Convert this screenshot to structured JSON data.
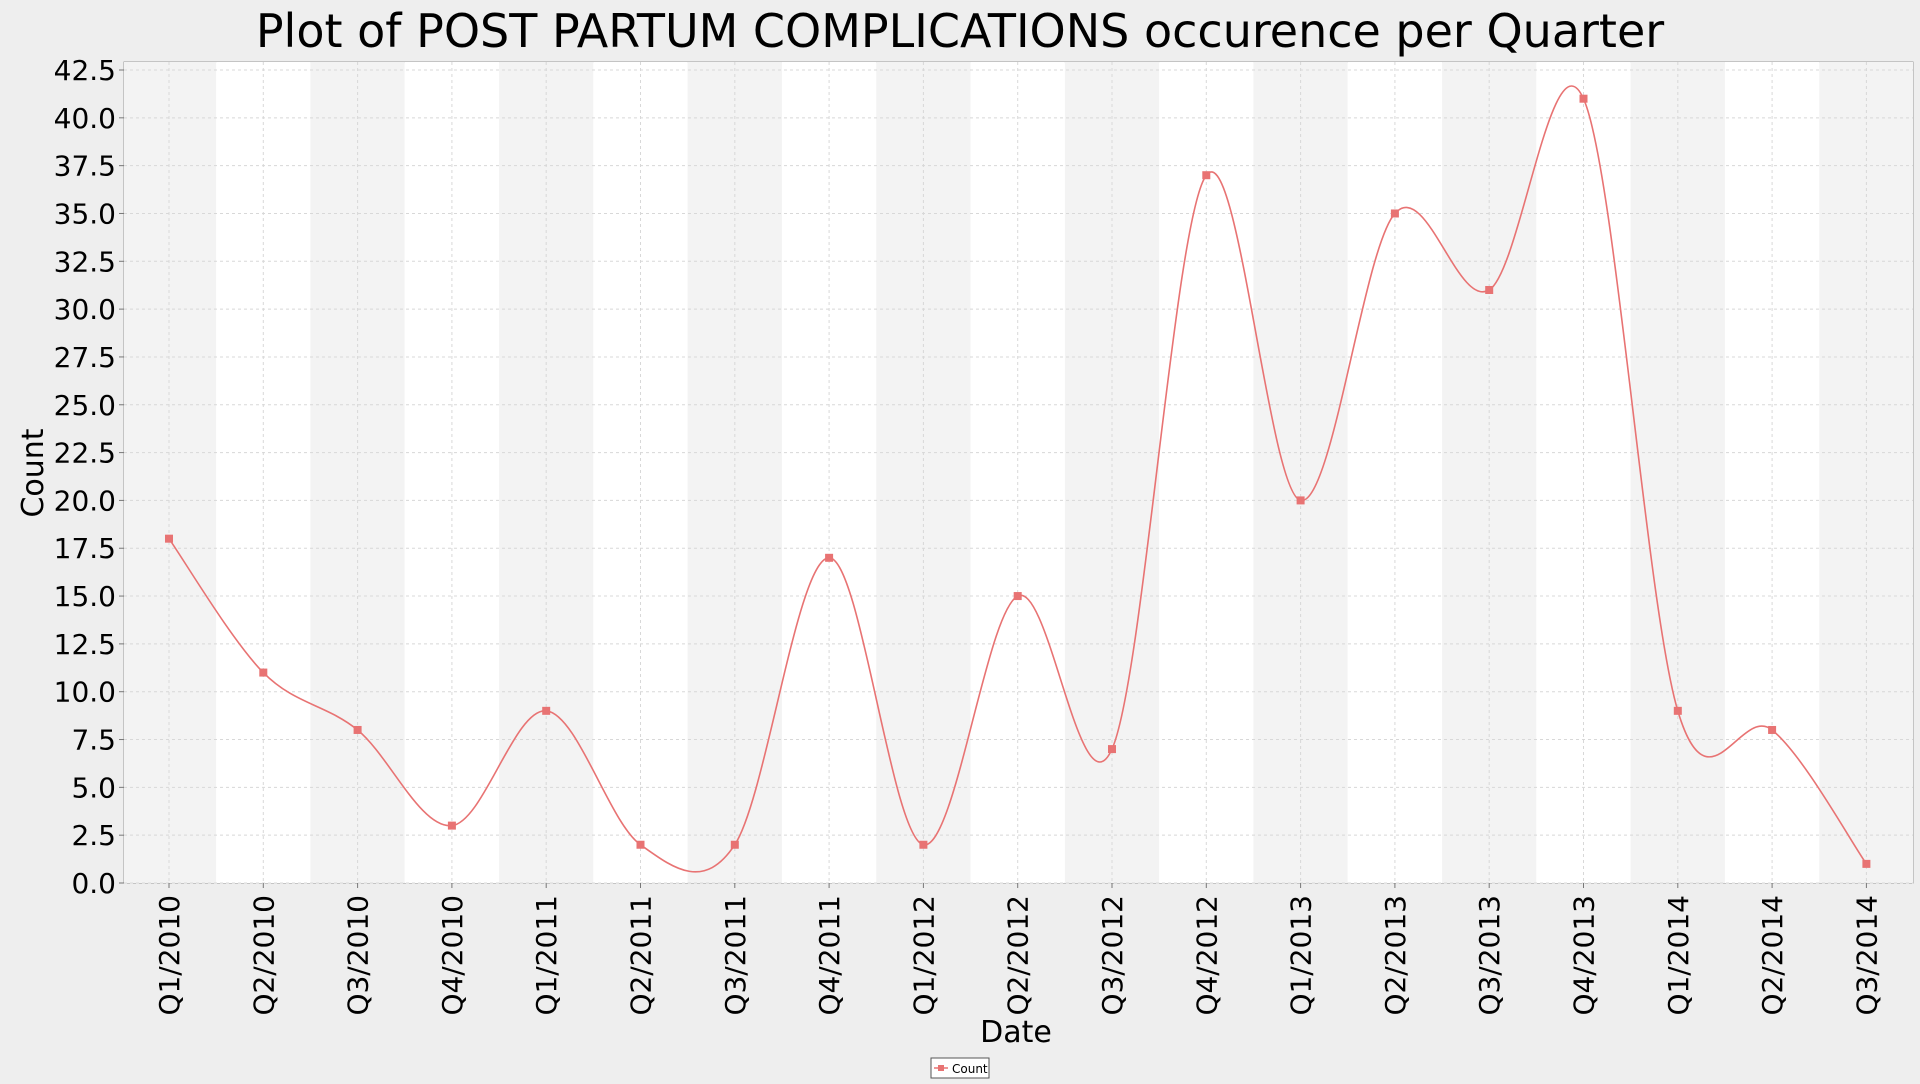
{
  "chart_data": {
    "type": "line",
    "title": "Plot of POST PARTUM COMPLICATIONS occurence per Quarter",
    "xlabel": "Date",
    "ylabel": "Count",
    "categories": [
      "Q1/2010",
      "Q2/2010",
      "Q3/2010",
      "Q4/2010",
      "Q1/2011",
      "Q2/2011",
      "Q3/2011",
      "Q4/2011",
      "Q1/2012",
      "Q2/2012",
      "Q3/2012",
      "Q4/2012",
      "Q1/2013",
      "Q2/2013",
      "Q3/2013",
      "Q4/2013",
      "Q1/2014",
      "Q2/2014",
      "Q3/2014"
    ],
    "series": [
      {
        "name": "Count",
        "values": [
          18,
          11,
          8,
          3,
          9,
          2,
          2,
          17,
          2,
          15,
          7,
          37,
          20,
          35,
          31,
          41,
          9,
          8,
          1
        ],
        "color": "#e87373"
      }
    ],
    "ylim": [
      0,
      42.5
    ],
    "yticks": [
      "0.0",
      "2.5",
      "5.0",
      "7.5",
      "10.0",
      "12.5",
      "15.0",
      "17.5",
      "20.0",
      "22.5",
      "25.0",
      "27.5",
      "30.0",
      "32.5",
      "35.0",
      "37.5",
      "40.0",
      "42.5"
    ],
    "grid": true,
    "alternating_bands": true,
    "smoothed": true,
    "legend_position": "bottom-center"
  }
}
